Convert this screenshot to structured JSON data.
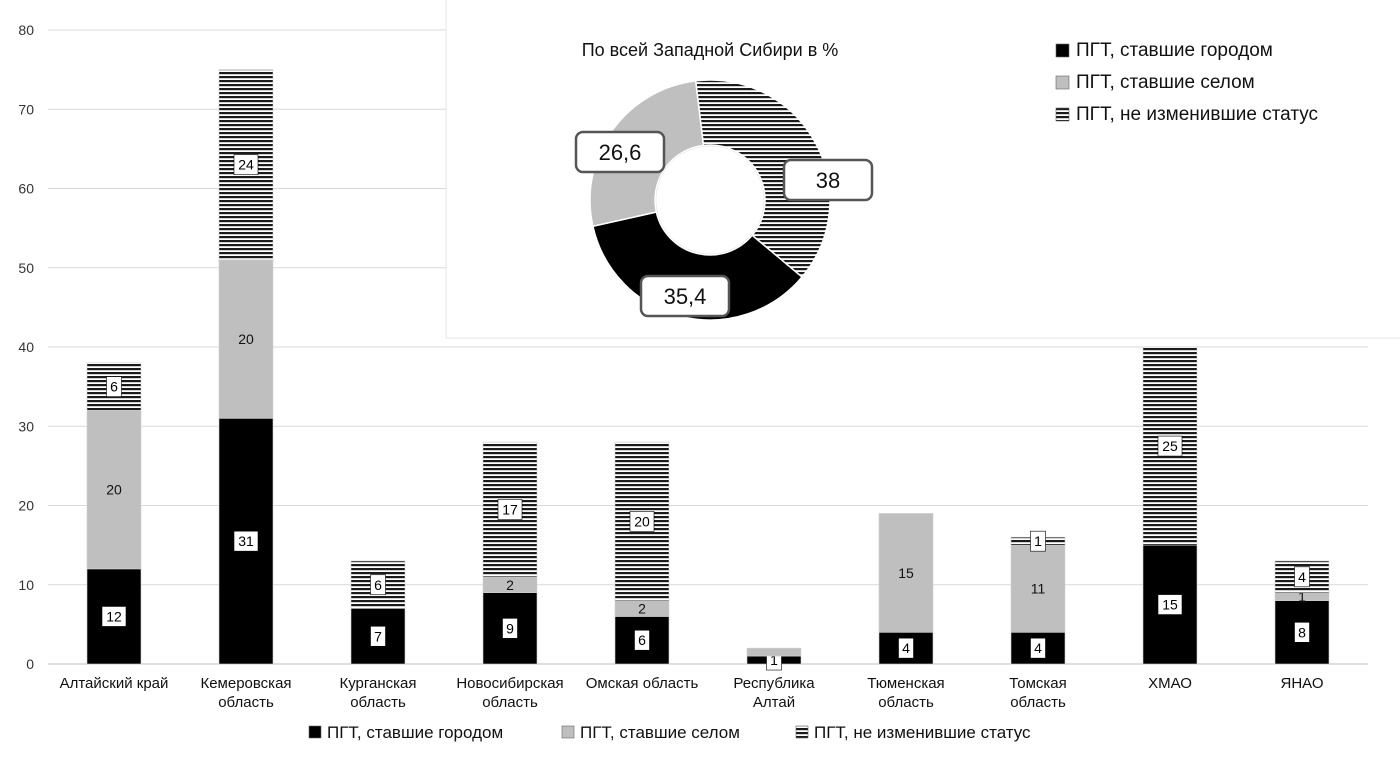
{
  "chart_data": [
    {
      "type": "bar",
      "stacked": true,
      "categories": [
        "Алтайский край",
        "Кемеровская область",
        "Курганская область",
        "Новосибирская область",
        "Омская область",
        "Республика Алтай",
        "Тюменская область",
        "Томская область",
        "ХМАО",
        "ЯНАО"
      ],
      "series": [
        {
          "name": "ПГТ, ставшие городом",
          "values": [
            12,
            31,
            7,
            9,
            6,
            1,
            4,
            4,
            15,
            8
          ],
          "color": "#000000",
          "pattern": "solid"
        },
        {
          "name": "ПГТ, ставшие селом",
          "values": [
            20,
            20,
            0,
            2,
            2,
            1,
            15,
            11,
            0,
            1
          ],
          "color": "#bfbfbf",
          "pattern": "solid"
        },
        {
          "name": "ПГТ, не изменившие статус",
          "values": [
            6,
            24,
            6,
            17,
            20,
            0,
            0,
            1,
            25,
            4
          ],
          "color": "#000000",
          "pattern": "horizontal-stripes"
        }
      ],
      "data_labels": [
        [
          "12",
          "31",
          "7",
          "9",
          "6",
          "1",
          "4",
          "4",
          "15",
          "8"
        ],
        [
          "20",
          "20",
          "",
          "2",
          "2",
          "",
          "15",
          "11",
          "",
          "1"
        ],
        [
          "6",
          "24",
          "6",
          "17",
          "20",
          "",
          "",
          "1",
          "25",
          "4"
        ]
      ],
      "ylim": [
        0,
        80
      ],
      "yticks": [
        0,
        10,
        20,
        30,
        40,
        50,
        60,
        70,
        80
      ],
      "grid": true,
      "legend_position": "bottom"
    },
    {
      "type": "pie",
      "donut": true,
      "title": "По всей Западной Сибири в %",
      "slices": [
        {
          "name": "ПГТ, не изменившие статус",
          "value": 38,
          "label": "38",
          "color": "#000000",
          "pattern": "horizontal-stripes"
        },
        {
          "name": "ПГТ, ставшие городом",
          "value": 35.4,
          "label": "35,4",
          "color": "#000000",
          "pattern": "solid"
        },
        {
          "name": "ПГТ, ставшие селом",
          "value": 26.6,
          "label": "26,6",
          "color": "#bfbfbf",
          "pattern": "solid"
        }
      ],
      "legend_position": "top-right"
    }
  ]
}
